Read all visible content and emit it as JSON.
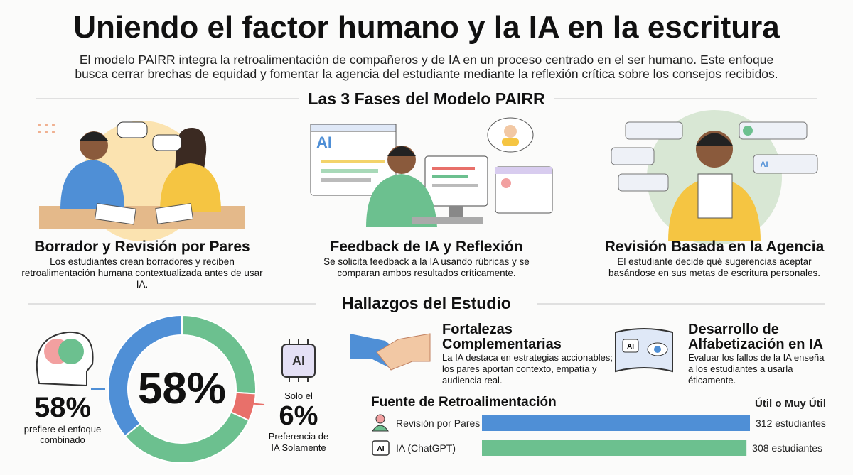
{
  "header": {
    "title": "Uniendo el factor humano y la IA en la escritura",
    "subtitle": "El modelo PAIRR integra la retroalimentación de compañeros y de IA en un proceso centrado en el ser humano. Este enfoque busca cerrar brechas de equidad y fomentar la agencia del estudiante mediante la reflexión crítica sobre los consejos recibidos."
  },
  "phases": {
    "title": "Las 3 Fases del Modelo PAIRR",
    "icon_text": "AI",
    "items": [
      {
        "title": "Borrador y Revisión por Pares",
        "description": "Los estudiantes crean borradores y reciben retroalimentación humana contextualizada antes de usar IA."
      },
      {
        "title": "Feedback de IA y Reflexión",
        "description": "Se solicita feedback a la IA usando rúbricas y se comparan ambos resultados críticamente."
      },
      {
        "title": "Revisión Basada en la Agencia",
        "description": "El estudiante decide qué sugerencias aceptar basándose en sus metas de escritura personales."
      }
    ]
  },
  "findings": {
    "title": "Hallazgos del Estudio",
    "donut": {
      "center_label": "58%",
      "segments": [
        {
          "value": 26,
          "color": "#6cc08f"
        },
        {
          "value": 6,
          "color": "#e8706a"
        },
        {
          "value": 32,
          "color": "#6cc08f"
        },
        {
          "value": 36,
          "color": "#4f8fd6"
        }
      ]
    },
    "combined": {
      "value_label": "58%",
      "text": "prefiere el enfoque combinado"
    },
    "ai_only": {
      "prefix": "Solo el",
      "value_label": "6%",
      "text": "Preferencia de IA Solamente"
    },
    "cards": [
      {
        "title": "Fortalezas Complementarias",
        "text": "La IA destaca en estrategias accionables; los pares aportan contexto, empatía y audiencia real."
      },
      {
        "title": "Desarrollo de Alfabetización en IA",
        "text": "Evaluar los fallos de la IA enseña a los estudiantes a usarla éticamente."
      }
    ],
    "feedback_source": {
      "title": "Fuente de Retroalimentación",
      "header": "Útil o Muy Útil",
      "categories": [
        "Revisión por Pares",
        "IA (ChatGPT)"
      ],
      "values": [
        312,
        308
      ],
      "value_labels": [
        "312 estudiantes",
        "308 estudiantes"
      ],
      "colors": [
        "#4f8fd6",
        "#6cc08f"
      ]
    }
  }
}
